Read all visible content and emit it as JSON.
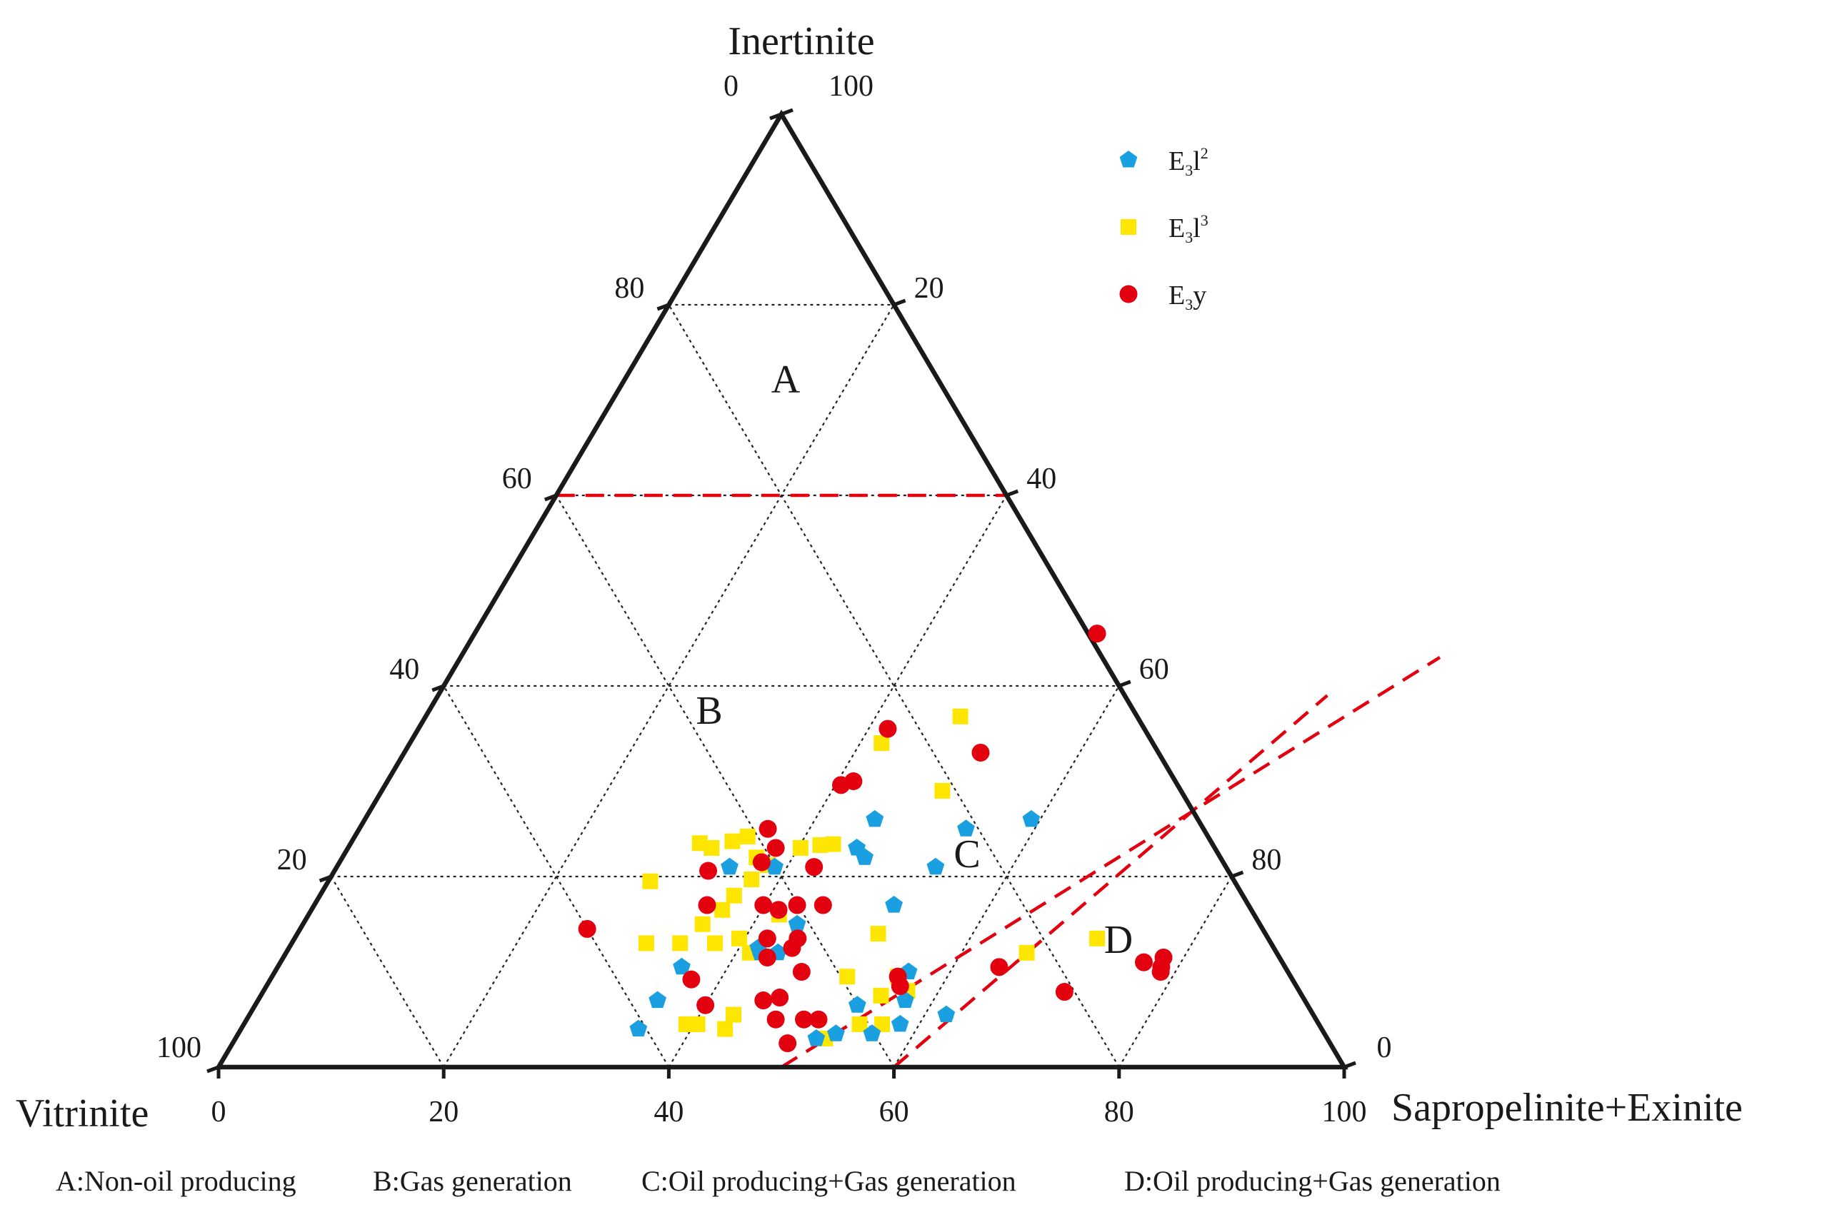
{
  "chart_data": {
    "type": "ternary-scatter",
    "axes": {
      "top": {
        "label": "Inertinite"
      },
      "left": {
        "label": "Vitrinite"
      },
      "right": {
        "label": "Sapropelinite+Exinite"
      },
      "corner_top_inner": "0",
      "corner_top_outer": "100",
      "corner_left": "100",
      "corner_right": "0",
      "left_ticks": [
        "20",
        "40",
        "60",
        "80"
      ],
      "right_ticks": [
        "80",
        "60",
        "40",
        "20"
      ],
      "bottom_ticks": [
        "0",
        "20",
        "40",
        "60",
        "80",
        "100"
      ]
    },
    "region_labels": [
      "A",
      "B",
      "C",
      "D"
    ],
    "region_descriptions": [
      "A:Non-oil producing",
      "B:Gas generation",
      "C:Oil producing+Gas generation",
      "D:Oil producing+Gas generation"
    ],
    "boundaries": [
      {
        "name": "inertinite-40",
        "from": {
          "s": 0,
          "i": 60
        },
        "to": {
          "s": 40,
          "i": 60
        }
      },
      {
        "name": "cd-boundary-1",
        "from": {
          "s": 50,
          "i": 0
        },
        "to": {
          "s": 87,
          "i": 43
        }
      },
      {
        "name": "cd-boundary-2",
        "from": {
          "s": 60,
          "i": 0
        },
        "to": {
          "s": 79,
          "i": 39
        }
      }
    ],
    "series": [
      {
        "name": "E3l2",
        "display": {
          "base": "E",
          "sub": "3",
          "mid": "l",
          "sup": "2"
        },
        "color": "#1aa0e0",
        "marker": "pentagon",
        "points": [
          {
            "s": 34.9,
            "i": 21.0
          },
          {
            "s": 38.9,
            "i": 21.0
          },
          {
            "s": 53.2,
            "i": 21.0
          },
          {
            "s": 45.3,
            "i": 26.0
          },
          {
            "s": 45.2,
            "i": 23.0
          },
          {
            "s": 46.4,
            "i": 22.0
          },
          {
            "s": 53.9,
            "i": 25.0
          },
          {
            "s": 59.2,
            "i": 26.0
          },
          {
            "s": 51.5,
            "i": 17.0
          },
          {
            "s": 43.9,
            "i": 15.0
          },
          {
            "s": 42.1,
            "i": 12.0
          },
          {
            "s": 41.7,
            "i": 12.5
          },
          {
            "s": 43.7,
            "i": 12.0
          },
          {
            "s": 35.9,
            "i": 10.5
          },
          {
            "s": 35.5,
            "i": 7.0
          },
          {
            "s": 35.3,
            "i": 4.0
          },
          {
            "s": 51.6,
            "i": 3.0
          },
          {
            "s": 53.1,
            "i": 3.5
          },
          {
            "s": 53.5,
            "i": 6.5
          },
          {
            "s": 56.3,
            "i": 10.0
          },
          {
            "s": 57.5,
            "i": 7.0
          },
          {
            "s": 56.3,
            "i": 3.5
          },
          {
            "s": 58.3,
            "i": 4.5
          },
          {
            "s": 61.9,
            "i": 5.5
          }
        ]
      },
      {
        "name": "E3l3",
        "display": {
          "base": "E",
          "sub": "3",
          "mid": "l",
          "sup": "3"
        },
        "color": "#ffe600",
        "marker": "square",
        "points": [
          {
            "s": 47.5,
            "i": 36.8
          },
          {
            "s": 41.9,
            "i": 34.0
          },
          {
            "s": 49.8,
            "i": 29.0
          },
          {
            "s": 31.0,
            "i": 23.5
          },
          {
            "s": 32.3,
            "i": 23.0
          },
          {
            "s": 33.8,
            "i": 23.7
          },
          {
            "s": 34.9,
            "i": 24.2
          },
          {
            "s": 36.8,
            "i": 22.0
          },
          {
            "s": 38.2,
            "i": 21.2
          },
          {
            "s": 40.2,
            "i": 23.0
          },
          {
            "s": 41.8,
            "i": 23.3
          },
          {
            "s": 42.9,
            "i": 23.4
          },
          {
            "s": 28.6,
            "i": 19.5
          },
          {
            "s": 37.5,
            "i": 19.7
          },
          {
            "s": 36.8,
            "i": 18.0
          },
          {
            "s": 36.5,
            "i": 16.5
          },
          {
            "s": 41.8,
            "i": 16.0
          },
          {
            "s": 31.5,
            "i": 13.0
          },
          {
            "s": 35.5,
            "i": 15.0
          },
          {
            "s": 34.5,
            "i": 13.0
          },
          {
            "s": 37.6,
            "i": 13.0
          },
          {
            "s": 39.5,
            "i": 13.5
          },
          {
            "s": 41.2,
            "i": 12.0
          },
          {
            "s": 51.6,
            "i": 14.0
          },
          {
            "s": 51.1,
            "i": 9.5
          },
          {
            "s": 55.6,
            "i": 9.5
          },
          {
            "s": 57.2,
            "i": 8.0
          },
          {
            "s": 55.1,
            "i": 7.5
          },
          {
            "s": 54.7,
            "i": 4.5
          },
          {
            "s": 56.7,
            "i": 4.5
          },
          {
            "s": 52.4,
            "i": 3.0
          },
          {
            "s": 40.3,
            "i": 4.5
          },
          {
            "s": 39.3,
            "i": 4.5
          },
          {
            "s": 43.0,
            "i": 4.0
          },
          {
            "s": 43.0,
            "i": 5.5
          },
          {
            "s": 65.8,
            "i": 12.0
          },
          {
            "s": 71.3,
            "i": 13.5
          }
        ]
      },
      {
        "name": "E3y",
        "display": {
          "base": "E",
          "sub": "3",
          "mid": "y",
          "sup": ""
        },
        "color": "#e3000f",
        "marker": "circle",
        "points": [
          {
            "s": 55.3,
            "i": 45.5
          },
          {
            "s": 41.7,
            "i": 35.5
          },
          {
            "s": 51.2,
            "i": 33.0
          },
          {
            "s": 40.5,
            "i": 29.6
          },
          {
            "s": 41.4,
            "i": 30.0
          },
          {
            "s": 36.3,
            "i": 25.0
          },
          {
            "s": 38.0,
            "i": 23.0
          },
          {
            "s": 33.2,
            "i": 20.6
          },
          {
            "s": 37.5,
            "i": 21.5
          },
          {
            "s": 42.4,
            "i": 21.0
          },
          {
            "s": 39.9,
            "i": 17.0
          },
          {
            "s": 41.5,
            "i": 16.5
          },
          {
            "s": 42.9,
            "i": 17.0
          },
          {
            "s": 45.2,
            "i": 17.0
          },
          {
            "s": 34.9,
            "i": 17.0
          },
          {
            "s": 25.5,
            "i": 14.5
          },
          {
            "s": 42.0,
            "i": 13.5
          },
          {
            "s": 44.7,
            "i": 13.5
          },
          {
            "s": 44.7,
            "i": 12.5
          },
          {
            "s": 43.0,
            "i": 11.5
          },
          {
            "s": 46.8,
            "i": 10.0
          },
          {
            "s": 37.4,
            "i": 9.2
          },
          {
            "s": 44.9,
            "i": 7.0
          },
          {
            "s": 46.2,
            "i": 7.3
          },
          {
            "s": 40.0,
            "i": 6.5
          },
          {
            "s": 47.0,
            "i": 5.0
          },
          {
            "s": 49.5,
            "i": 5.0
          },
          {
            "s": 50.8,
            "i": 5.0
          },
          {
            "s": 49.3,
            "i": 2.5
          },
          {
            "s": 55.6,
            "i": 9.5
          },
          {
            "s": 56.3,
            "i": 8.5
          },
          {
            "s": 64.1,
            "i": 10.5
          },
          {
            "s": 71.2,
            "i": 7.9
          },
          {
            "s": 76.7,
            "i": 11.0
          },
          {
            "s": 78.2,
            "i": 11.5
          },
          {
            "s": 78.5,
            "i": 10.5
          },
          {
            "s": 78.7,
            "i": 10.0
          }
        ]
      }
    ]
  }
}
